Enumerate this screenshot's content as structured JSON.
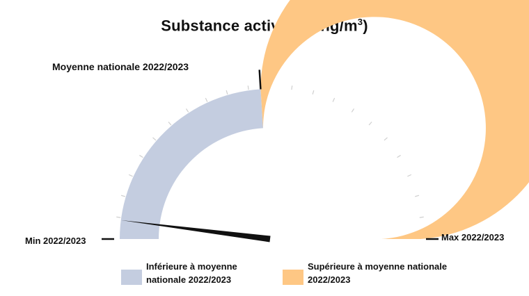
{
  "chart_data": {
    "type": "gauge",
    "title": "Substance active (en ng/m",
    "title_sup": "3",
    "title_suffix": ")",
    "min_label": "Min 2022/2023",
    "max_label": "Max 2022/2023",
    "reference_label": "Moyenne nationale 2022/2023",
    "reference_fraction": 0.48,
    "value_fraction": 0.04,
    "tick_count": 22,
    "segments": [
      {
        "name": "Inférieure à moyenne nationale 2022/2023",
        "from": 0,
        "to": 0.48,
        "color": "#c4cde0"
      },
      {
        "name": "Supérieure à moyenne nationale 2022/2023",
        "from": 0.48,
        "to": 1,
        "color": "#fec784"
      }
    ]
  },
  "legend": {
    "below_line1": "Inférieure à moyenne",
    "below_line2": "nationale 2022/2023",
    "above_line1": "Supérieure à moyenne nationale",
    "above_line2": "2022/2023"
  }
}
